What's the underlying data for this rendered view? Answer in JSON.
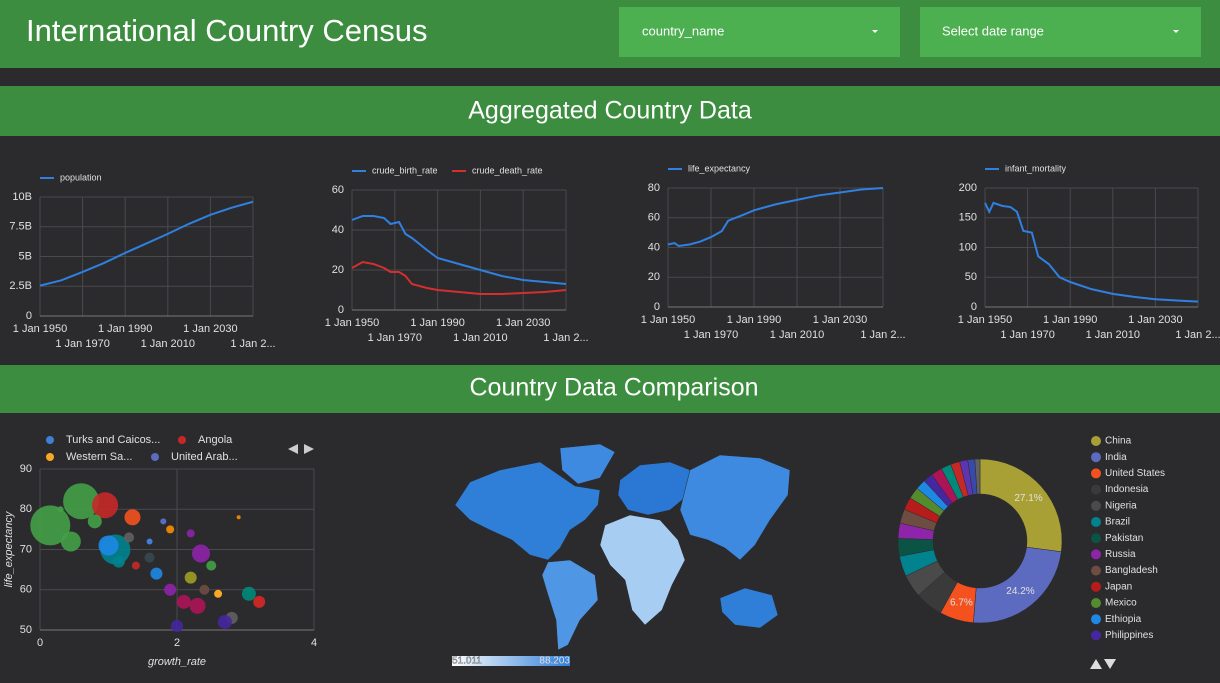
{
  "header": {
    "title": "International Country Census",
    "filters": [
      "country_name",
      "Select date range"
    ]
  },
  "sections": [
    "Aggregated Country Data",
    "Country Data Comparison"
  ],
  "chart_data": [
    {
      "type": "line",
      "x": [
        1950,
        1960,
        1970,
        1980,
        1990,
        2000,
        2010,
        2020,
        2030,
        2040,
        2050
      ],
      "series": [
        {
          "name": "population",
          "color": "#2f80e0",
          "values": [
            2550000000,
            3000000000,
            3700000000,
            4450000000,
            5300000000,
            6100000000,
            6900000000,
            7750000000,
            8500000000,
            9100000000,
            9600000000
          ]
        }
      ],
      "xlim": [
        1950,
        2050
      ],
      "xticks": [
        {
          "value": 1950,
          "label": "1 Jan 1950"
        },
        {
          "value": 1970,
          "label": "1 Jan 1970"
        },
        {
          "value": 1990,
          "label": "1 Jan 1990"
        },
        {
          "value": 2010,
          "label": "1 Jan 2010"
        },
        {
          "value": 2030,
          "label": "1 Jan 2030"
        },
        {
          "value": 2050,
          "label": "1 Jan 2..."
        }
      ],
      "ylim": [
        0,
        10000000000
      ],
      "yticks": [
        0,
        {
          "value": 2500000000,
          "label": "2.5B"
        },
        {
          "value": 5000000000,
          "label": "5B"
        },
        {
          "value": 7500000000,
          "label": "7.5B"
        },
        {
          "value": 10000000000,
          "label": "10B"
        }
      ],
      "grid": true
    },
    {
      "type": "line",
      "x": [
        1950,
        1955,
        1960,
        1965,
        1968,
        1972,
        1975,
        1978,
        1985,
        1990,
        2000,
        2010,
        2020,
        2030,
        2040,
        2050
      ],
      "series": [
        {
          "name": "crude_birth_rate",
          "color": "#2f80e0",
          "values": [
            45,
            47,
            47,
            46,
            43,
            44,
            38,
            36,
            30,
            26,
            23,
            20,
            17,
            15,
            14,
            13
          ]
        },
        {
          "name": "crude_death_rate",
          "color": "#d32f2f",
          "values": [
            21,
            24,
            23,
            21,
            19,
            19,
            17,
            13,
            11,
            10,
            9,
            8,
            8,
            8.5,
            9,
            10
          ]
        }
      ],
      "xlim": [
        1950,
        2050
      ],
      "xticks": [
        {
          "value": 1950,
          "label": "1 Jan 1950"
        },
        {
          "value": 1970,
          "label": "1 Jan 1970"
        },
        {
          "value": 1990,
          "label": "1 Jan 1990"
        },
        {
          "value": 2010,
          "label": "1 Jan 2010"
        },
        {
          "value": 2030,
          "label": "1 Jan 2030"
        },
        {
          "value": 2050,
          "label": "1 Jan 2..."
        }
      ],
      "ylim": [
        0,
        60
      ],
      "yticks": [
        0,
        20,
        40,
        60
      ],
      "grid": true
    },
    {
      "type": "line",
      "x": [
        1950,
        1953,
        1955,
        1960,
        1965,
        1970,
        1975,
        1978,
        1985,
        1990,
        2000,
        2010,
        2020,
        2030,
        2040,
        2050
      ],
      "series": [
        {
          "name": "life_expectancy",
          "color": "#2f80e0",
          "values": [
            42,
            43,
            41,
            42,
            44,
            47,
            51,
            58,
            62,
            65,
            69,
            72,
            75,
            77,
            79,
            80
          ]
        }
      ],
      "xlim": [
        1950,
        2050
      ],
      "xticks": [
        {
          "value": 1950,
          "label": "1 Jan 1950"
        },
        {
          "value": 1970,
          "label": "1 Jan 1970"
        },
        {
          "value": 1990,
          "label": "1 Jan 1990"
        },
        {
          "value": 2010,
          "label": "1 Jan 2010"
        },
        {
          "value": 2030,
          "label": "1 Jan 2030"
        },
        {
          "value": 2050,
          "label": "1 Jan 2..."
        }
      ],
      "ylim": [
        0,
        80
      ],
      "yticks": [
        0,
        20,
        40,
        60,
        80
      ],
      "grid": true
    },
    {
      "type": "line",
      "x": [
        1950,
        1952,
        1954,
        1958,
        1962,
        1965,
        1968,
        1972,
        1975,
        1980,
        1985,
        1990,
        2000,
        2010,
        2020,
        2030,
        2040,
        2050
      ],
      "series": [
        {
          "name": "infant_mortality",
          "color": "#2f80e0",
          "values": [
            175,
            160,
            175,
            170,
            168,
            160,
            128,
            125,
            85,
            72,
            50,
            42,
            30,
            22,
            17,
            13,
            11,
            9
          ]
        }
      ],
      "xlim": [
        1950,
        2050
      ],
      "xticks": [
        {
          "value": 1950,
          "label": "1 Jan 1950"
        },
        {
          "value": 1970,
          "label": "1 Jan 1970"
        },
        {
          "value": 1990,
          "label": "1 Jan 1990"
        },
        {
          "value": 2010,
          "label": "1 Jan 2010"
        },
        {
          "value": 2030,
          "label": "1 Jan 2030"
        },
        {
          "value": 2050,
          "label": "1 Jan 2..."
        }
      ],
      "ylim": [
        0,
        200
      ],
      "yticks": [
        0,
        50,
        100,
        150,
        200
      ],
      "grid": true
    },
    {
      "type": "bubble",
      "x_label": "growth_rate",
      "y_label": "life_expectancy",
      "series": [
        {
          "name": "Turks and Caicos...",
          "color": "#3f7fd6",
          "x": [
            1.6
          ],
          "y": [
            72
          ],
          "size": [
            3
          ]
        },
        {
          "name": "Angola",
          "color": "#c62828",
          "x": [
            3.2
          ],
          "y": [
            57
          ],
          "size": [
            6
          ]
        },
        {
          "name": "Western Sa...",
          "color": "#f9a825",
          "x": [
            2.6
          ],
          "y": [
            59
          ],
          "size": [
            4
          ]
        },
        {
          "name": "United Arab...",
          "color": "#5c6bc0",
          "x": [
            1.8
          ],
          "y": [
            77
          ],
          "size": [
            3
          ]
        }
      ],
      "points": {
        "x": [
          0.15,
          0.6,
          0.95,
          0.45,
          1.1,
          1.0,
          1.35,
          2.35,
          2.2,
          2.3,
          2.0,
          2.8,
          3.05,
          2.1,
          1.7,
          2.5,
          1.3,
          0.8,
          1.6,
          1.9,
          2.4,
          1.4,
          0.3,
          2.9,
          2.7,
          1.9,
          1.15,
          2.2
        ],
        "y": [
          76,
          82,
          81,
          72,
          70,
          71,
          78,
          69,
          63,
          56,
          51,
          53,
          59,
          57,
          64,
          66,
          73,
          77,
          68,
          75,
          60,
          66,
          80,
          78,
          52,
          60,
          67,
          74
        ],
        "size": [
          20,
          18,
          13,
          10,
          15,
          10,
          8,
          9,
          6,
          8,
          6,
          6,
          7,
          7,
          6,
          5,
          5,
          7,
          5,
          4,
          5,
          4,
          3,
          2,
          7,
          6,
          6,
          4
        ],
        "colors": [
          "#43a047",
          "#43a047",
          "#c62828",
          "#43a047",
          "#00838f",
          "#1e88e5",
          "#f4511e",
          "#8e24aa",
          "#9e9d24",
          "#ad1457",
          "#4527a0",
          "#616161",
          "#00897b",
          "#ad1457",
          "#1e88e5",
          "#43a047",
          "#616161",
          "#43a047",
          "#37474f",
          "#fb8c00",
          "#6d4c41",
          "#c62828",
          "#43a047",
          "#fb8c00",
          "#4527a0",
          "#8e24aa",
          "#00838f",
          "#8e24aa"
        ]
      },
      "xlim": [
        0,
        4
      ],
      "xticks": [
        0,
        2,
        4
      ],
      "ylim": [
        50,
        90
      ],
      "yticks": [
        50,
        60,
        70,
        80,
        90
      ],
      "grid": true
    },
    {
      "type": "geo",
      "colorbar": {
        "min": 51.011,
        "max": 88.203
      },
      "colors": [
        "#ffffff",
        "#2f7fd8"
      ]
    },
    {
      "type": "pie",
      "categories": [
        "China",
        "India",
        "United States",
        "Indonesia",
        "Nigeria",
        "Brazil",
        "Pakistan",
        "Russia",
        "Bangladesh",
        "Japan",
        "Mexico",
        "Ethiopia",
        "Philippines",
        null,
        null,
        null,
        null,
        null,
        null
      ],
      "values": [
        27.1,
        24.2,
        6.7,
        5.5,
        4.5,
        4,
        3.5,
        3,
        2.8,
        2.5,
        2.3,
        2,
        1.9,
        2.2,
        2,
        1.8,
        1.6,
        1.4,
        1
      ],
      "value_labels": [
        "27.1%",
        "24.2%",
        "6.7%",
        null,
        null,
        null,
        null,
        null,
        null,
        null,
        null,
        null,
        null,
        null,
        null,
        null,
        null,
        null,
        null
      ],
      "colors": [
        "#a9a035",
        "#5c6bc0",
        "#f4511e",
        "#3a3a3a",
        "#4a4a4a",
        "#00838f",
        "#0b5345",
        "#8e24aa",
        "#6d4c41",
        "#b71c1c",
        "#558b2f",
        "#1e88e5",
        "#4527a0",
        "#ad1457",
        "#00897b",
        "#c62828",
        "#5e35b1",
        "#3949ab",
        "#616161"
      ]
    }
  ]
}
